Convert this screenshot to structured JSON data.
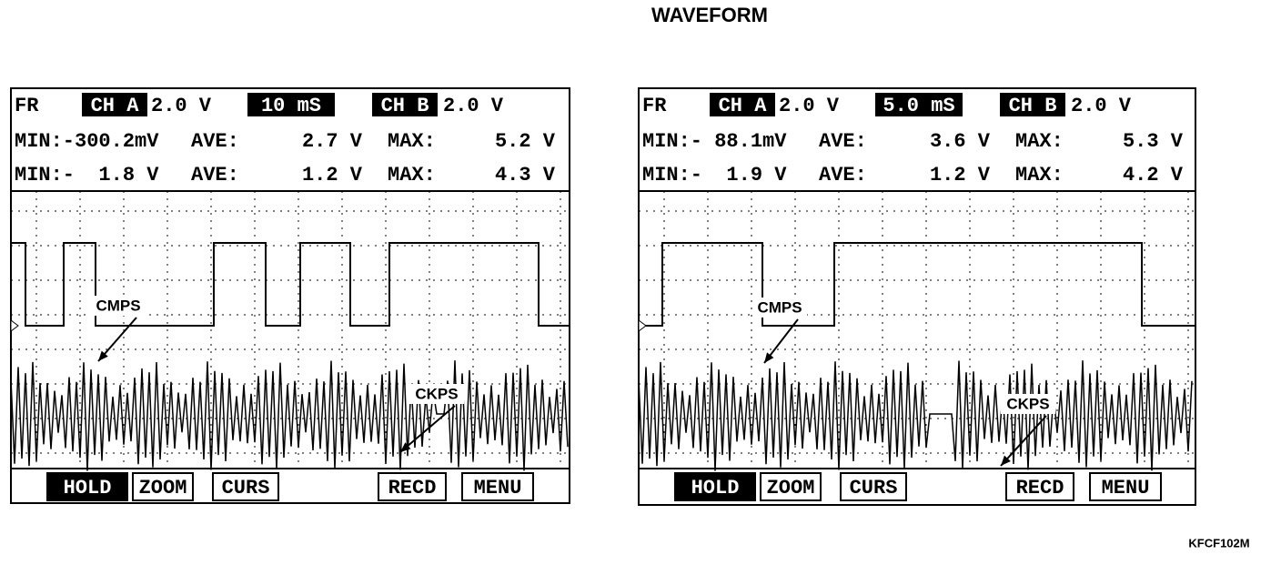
{
  "title": "WAVEFORM",
  "code": "KFCF102M",
  "screens": [
    {
      "header": {
        "mode": "FR",
        "ch_a": "CH A",
        "ch_a_scale": "2.0 V",
        "time": "10 mS",
        "ch_b": "CH B",
        "ch_b_scale": "2.0 V"
      },
      "rows": [
        [
          "MIN:-300.2mV",
          "AVE:",
          "2.7 V",
          "MAX:",
          "5.2 V"
        ],
        [
          "MIN:-  1.8 V",
          "AVE:",
          "1.2 V",
          "MAX:",
          "4.3 V"
        ]
      ],
      "labels": [
        "CMPS",
        "CKPS"
      ],
      "buttons": [
        "HOLD",
        "ZOOM",
        "CURS",
        "RECD",
        "MENU"
      ]
    },
    {
      "header": {
        "mode": "FR",
        "ch_a": "CH A",
        "ch_a_scale": "2.0 V",
        "time": "5.0 mS",
        "ch_b": "CH B",
        "ch_b_scale": "2.0 V"
      },
      "rows": [
        [
          "MIN:- 88.1mV",
          "AVE:",
          "3.6 V",
          "MAX:",
          "5.3 V"
        ],
        [
          "MIN:-  1.9 V",
          "AVE:",
          "1.2 V",
          "MAX:",
          "4.2 V"
        ]
      ],
      "labels": [
        "CMPS",
        "CKPS"
      ],
      "buttons": [
        "HOLD",
        "ZOOM",
        "CURS",
        "RECD",
        "MENU"
      ]
    }
  ]
}
